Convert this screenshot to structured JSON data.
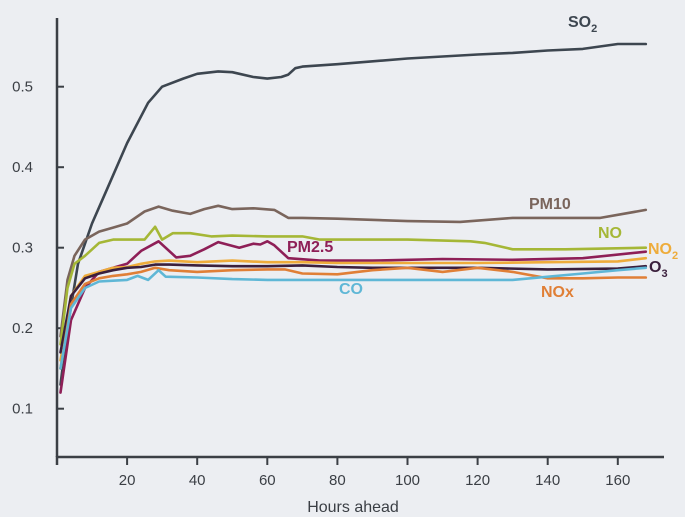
{
  "chart_data": {
    "type": "line",
    "xlabel": "Hours ahead",
    "ylabel": "",
    "xlim": [
      0,
      170
    ],
    "ylim": [
      0.04,
      0.6
    ],
    "xticks": [
      20,
      40,
      60,
      80,
      100,
      120,
      140,
      160
    ],
    "yticks": [
      0.1,
      0.2,
      0.3,
      0.4,
      0.5
    ],
    "xtick_labels": [
      "20",
      "40",
      "60",
      "80",
      "100",
      "120",
      "140",
      "160"
    ],
    "ytick_labels": [
      "0.1",
      "0.2",
      "0.3",
      "0.4",
      "0.5"
    ],
    "grid": false,
    "legend": "inline labels at line ends",
    "series": [
      {
        "name": "SO",
        "subscript": "2",
        "color": "#3d4650",
        "x": [
          1,
          3,
          6,
          10,
          14,
          20,
          26,
          30,
          36,
          40,
          46,
          50,
          56,
          60,
          64,
          66,
          68,
          70,
          80,
          100,
          120,
          130,
          140,
          150,
          160,
          168
        ],
        "y": [
          0.13,
          0.2,
          0.28,
          0.33,
          0.37,
          0.43,
          0.48,
          0.5,
          0.51,
          0.516,
          0.519,
          0.518,
          0.512,
          0.51,
          0.512,
          0.515,
          0.523,
          0.525,
          0.528,
          0.535,
          0.54,
          0.542,
          0.545,
          0.547,
          0.553,
          0.553
        ]
      },
      {
        "name": "PM10",
        "color": "#7a655c",
        "x": [
          1,
          3,
          5,
          8,
          12,
          16,
          20,
          25,
          29,
          33,
          38,
          42,
          46,
          50,
          56,
          62,
          66,
          70,
          80,
          100,
          115,
          130,
          145,
          155,
          168
        ],
        "y": [
          0.19,
          0.26,
          0.29,
          0.31,
          0.32,
          0.325,
          0.33,
          0.345,
          0.351,
          0.346,
          0.342,
          0.348,
          0.352,
          0.348,
          0.349,
          0.347,
          0.337,
          0.337,
          0.336,
          0.333,
          0.332,
          0.337,
          0.337,
          0.337,
          0.347
        ]
      },
      {
        "name": "NO",
        "color": "#a5b736",
        "x": [
          1,
          3,
          5,
          8,
          12,
          16,
          20,
          25,
          28,
          30,
          33,
          38,
          44,
          50,
          60,
          70,
          75,
          90,
          100,
          118,
          122,
          130,
          145,
          168
        ],
        "y": [
          0.18,
          0.25,
          0.28,
          0.29,
          0.306,
          0.31,
          0.31,
          0.31,
          0.326,
          0.31,
          0.318,
          0.318,
          0.314,
          0.315,
          0.314,
          0.314,
          0.31,
          0.31,
          0.31,
          0.308,
          0.306,
          0.298,
          0.298,
          0.3
        ]
      },
      {
        "name": "PM2.5",
        "color": "#8e1f57",
        "x": [
          1,
          4,
          8,
          12,
          16,
          20,
          24,
          29,
          34,
          38,
          42,
          46,
          52,
          56,
          58,
          60,
          62,
          66,
          75,
          90,
          110,
          130,
          150,
          168
        ],
        "y": [
          0.12,
          0.21,
          0.25,
          0.27,
          0.275,
          0.28,
          0.296,
          0.308,
          0.288,
          0.29,
          0.298,
          0.307,
          0.3,
          0.305,
          0.304,
          0.308,
          0.303,
          0.287,
          0.284,
          0.284,
          0.286,
          0.285,
          0.287,
          0.295
        ]
      },
      {
        "name": "NO",
        "subscript": "2",
        "color": "#eeac3b",
        "x": [
          1,
          4,
          8,
          12,
          16,
          20,
          24,
          28,
          32,
          40,
          50,
          60,
          70,
          80,
          100,
          120,
          140,
          160,
          168
        ],
        "y": [
          0.16,
          0.24,
          0.265,
          0.27,
          0.275,
          0.276,
          0.28,
          0.283,
          0.284,
          0.282,
          0.284,
          0.282,
          0.282,
          0.281,
          0.281,
          0.281,
          0.282,
          0.283,
          0.287
        ]
      },
      {
        "name": "O",
        "subscript": "3",
        "color": "#3a1f3c",
        "x": [
          1,
          4,
          8,
          12,
          16,
          20,
          24,
          28,
          32,
          40,
          50,
          60,
          70,
          80,
          90,
          100,
          120,
          140,
          160,
          168
        ],
        "y": [
          0.17,
          0.24,
          0.262,
          0.268,
          0.272,
          0.275,
          0.276,
          0.279,
          0.279,
          0.278,
          0.277,
          0.277,
          0.278,
          0.276,
          0.275,
          0.275,
          0.275,
          0.273,
          0.274,
          0.277
        ]
      },
      {
        "name": "NOx",
        "color": "#e07f36",
        "x": [
          1,
          4,
          8,
          12,
          16,
          20,
          24,
          28,
          32,
          40,
          50,
          60,
          65,
          70,
          80,
          90,
          100,
          110,
          120,
          130,
          140,
          150,
          160,
          168
        ],
        "y": [
          0.15,
          0.23,
          0.255,
          0.262,
          0.265,
          0.267,
          0.27,
          0.275,
          0.272,
          0.27,
          0.272,
          0.273,
          0.273,
          0.268,
          0.267,
          0.272,
          0.275,
          0.27,
          0.275,
          0.27,
          0.262,
          0.262,
          0.263,
          0.263
        ]
      },
      {
        "name": "CO",
        "color": "#5fb7d6",
        "x": [
          1,
          4,
          8,
          12,
          16,
          20,
          23,
          26,
          29,
          31,
          40,
          50,
          60,
          80,
          100,
          120,
          130,
          150,
          160,
          168
        ],
        "y": [
          0.15,
          0.225,
          0.25,
          0.258,
          0.259,
          0.26,
          0.265,
          0.26,
          0.272,
          0.264,
          0.263,
          0.261,
          0.26,
          0.26,
          0.26,
          0.26,
          0.26,
          0.268,
          0.272,
          0.275
        ]
      }
    ]
  }
}
